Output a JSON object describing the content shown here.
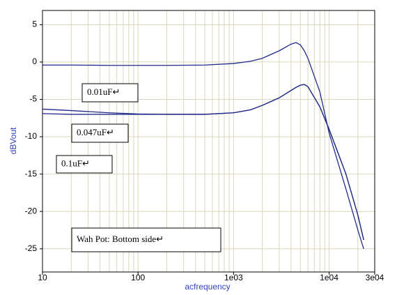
{
  "chart_data": {
    "type": "line",
    "xlabel": "acfrequency",
    "ylabel": "dBVout",
    "x": [
      10,
      20,
      50,
      100,
      200,
      500,
      1000,
      1500,
      2000,
      3000,
      4000,
      4500,
      5000,
      5500,
      6000,
      8000,
      10000,
      15000,
      20000,
      23000
    ],
    "series": [
      {
        "color": "#1f2a8a",
        "values": [
          -0.4,
          -0.4,
          -0.45,
          -0.45,
          -0.45,
          -0.4,
          -0.2,
          0.1,
          0.5,
          1.5,
          2.4,
          2.6,
          2.3,
          1.5,
          0.5,
          -4,
          -9.5,
          -17,
          -22.5,
          -25
        ]
      },
      {
        "color": "#1f2a8a",
        "values": [
          -6.3,
          -6.5,
          -6.8,
          -6.95,
          -7,
          -7,
          -6.8,
          -6.4,
          -5.8,
          -4.8,
          -3.8,
          -3.4,
          -3.1,
          -3,
          -3.3,
          -6,
          -9,
          -15,
          -20.5,
          -23.8
        ]
      },
      {
        "color": "#1f2a8a",
        "values": [
          -6.9,
          -7,
          -7,
          -7,
          -7,
          -7,
          -6.8,
          -6.4,
          -5.8,
          -4.8,
          -3.8,
          -3.4,
          -3.1,
          -3,
          -3.3,
          -6,
          -9,
          -15,
          -20.5,
          -23.8
        ]
      }
    ],
    "xscale": "log",
    "xlim": [
      10,
      30000
    ],
    "xticks": [
      10,
      100,
      {
        "value": 1000,
        "label": "1e03"
      },
      {
        "value": 10000,
        "label": "1e04"
      },
      {
        "value": 30000,
        "label": "3e04"
      }
    ],
    "ylim": [
      -28.1,
      6.9
    ],
    "yticks": [
      5,
      0,
      -5,
      -10,
      -15,
      -20,
      -25
    ],
    "grid": true,
    "annotations": [
      {
        "text": "0.01uF↵"
      },
      {
        "text": "0.047uF↵"
      },
      {
        "text": "0.1uF↵"
      },
      {
        "text": "Wah Pot: Bottom side↵"
      }
    ]
  }
}
